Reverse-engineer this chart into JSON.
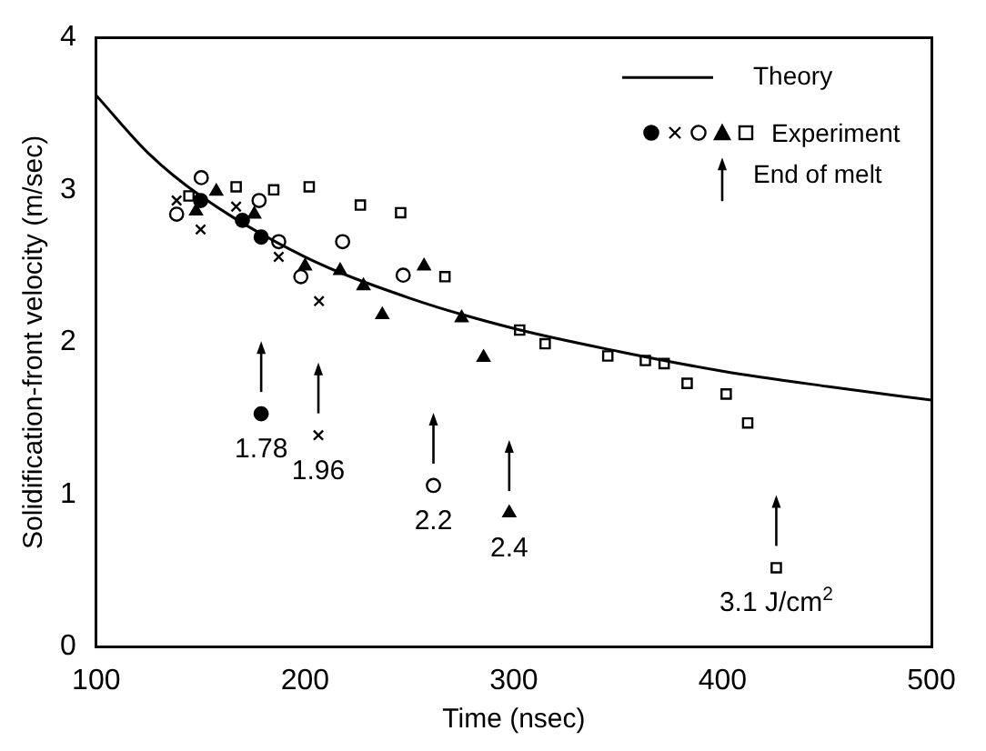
{
  "chart_data": {
    "type": "scatter",
    "xlabel": "Time (nsec)",
    "ylabel": "Solidification-front velocity (m/sec)",
    "xlim": [
      100,
      500
    ],
    "xticks": [
      100,
      200,
      300,
      400,
      500
    ],
    "ylim": [
      0,
      4
    ],
    "yticks": [
      0,
      1,
      2,
      3,
      4
    ],
    "grid": false,
    "legend": "top right",
    "series": [
      {
        "name": "Theory",
        "type": "line",
        "marker": "none",
        "color": "#000000",
        "x": [
          100,
          125,
          150,
          200,
          250,
          300,
          350,
          400,
          450,
          500
        ],
        "values": [
          3.62,
          3.24,
          2.96,
          2.56,
          2.29,
          2.09,
          1.94,
          1.81,
          1.71,
          1.62
        ]
      },
      {
        "type": "scatter",
        "marker": "circle",
        "color": "#000000",
        "x": [
          150,
          170,
          179,
          179
        ],
        "values": [
          2.93,
          2.8,
          2.69,
          1.53
        ]
      },
      {
        "type": "scatter",
        "marker": "cross",
        "color": "#000000",
        "x": [
          138.5,
          150,
          167,
          187.4,
          206.7,
          206.4
        ],
        "values": [
          2.93,
          2.74,
          2.89,
          2.56,
          2.27,
          1.39
        ]
      },
      {
        "type": "scatter",
        "marker": "circle",
        "color": "#ffffff",
        "x": [
          150.3,
          138.5,
          178,
          187.4,
          218,
          198,
          247,
          261.5
        ],
        "values": [
          3.08,
          2.84,
          2.93,
          2.66,
          2.66,
          2.43,
          2.44,
          1.06
        ]
      },
      {
        "type": "scatter",
        "marker": "triangle",
        "color": "#000000",
        "x": [
          157.5,
          147.8,
          175.7,
          200,
          216.8,
          228,
          237,
          257,
          275,
          285.5,
          297.8
        ],
        "values": [
          2.99,
          2.86,
          2.84,
          2.5,
          2.47,
          2.37,
          2.18,
          2.5,
          2.16,
          1.9,
          0.88
        ]
      },
      {
        "name": "Experiment",
        "type": "scatter",
        "marker": "square",
        "color": "#ffffff",
        "x": [
          144.4,
          167,
          185,
          202,
          226.5,
          245.8,
          267,
          302.8,
          315,
          345,
          363,
          372,
          383,
          401.7,
          412,
          425.7
        ],
        "values": [
          2.96,
          3.02,
          3.0,
          3.02,
          2.9,
          2.85,
          2.43,
          2.08,
          1.99,
          1.91,
          1.88,
          1.86,
          1.73,
          1.66,
          1.47,
          0.52
        ]
      }
    ],
    "annotations": [
      "End of melt",
      {
        "text": "1.78",
        "x": 179,
        "y": 1.53
      },
      {
        "text": "1.96",
        "x": 206.4,
        "y": 1.39
      },
      {
        "text": "2.2",
        "x": 261.5,
        "y": 1.06
      },
      {
        "text": "2.4",
        "x": 297.8,
        "y": 0.88
      },
      {
        "text": "3.1 J/cm$^{2}$",
        "x": 425.7,
        "y": 0.52
      }
    ]
  }
}
